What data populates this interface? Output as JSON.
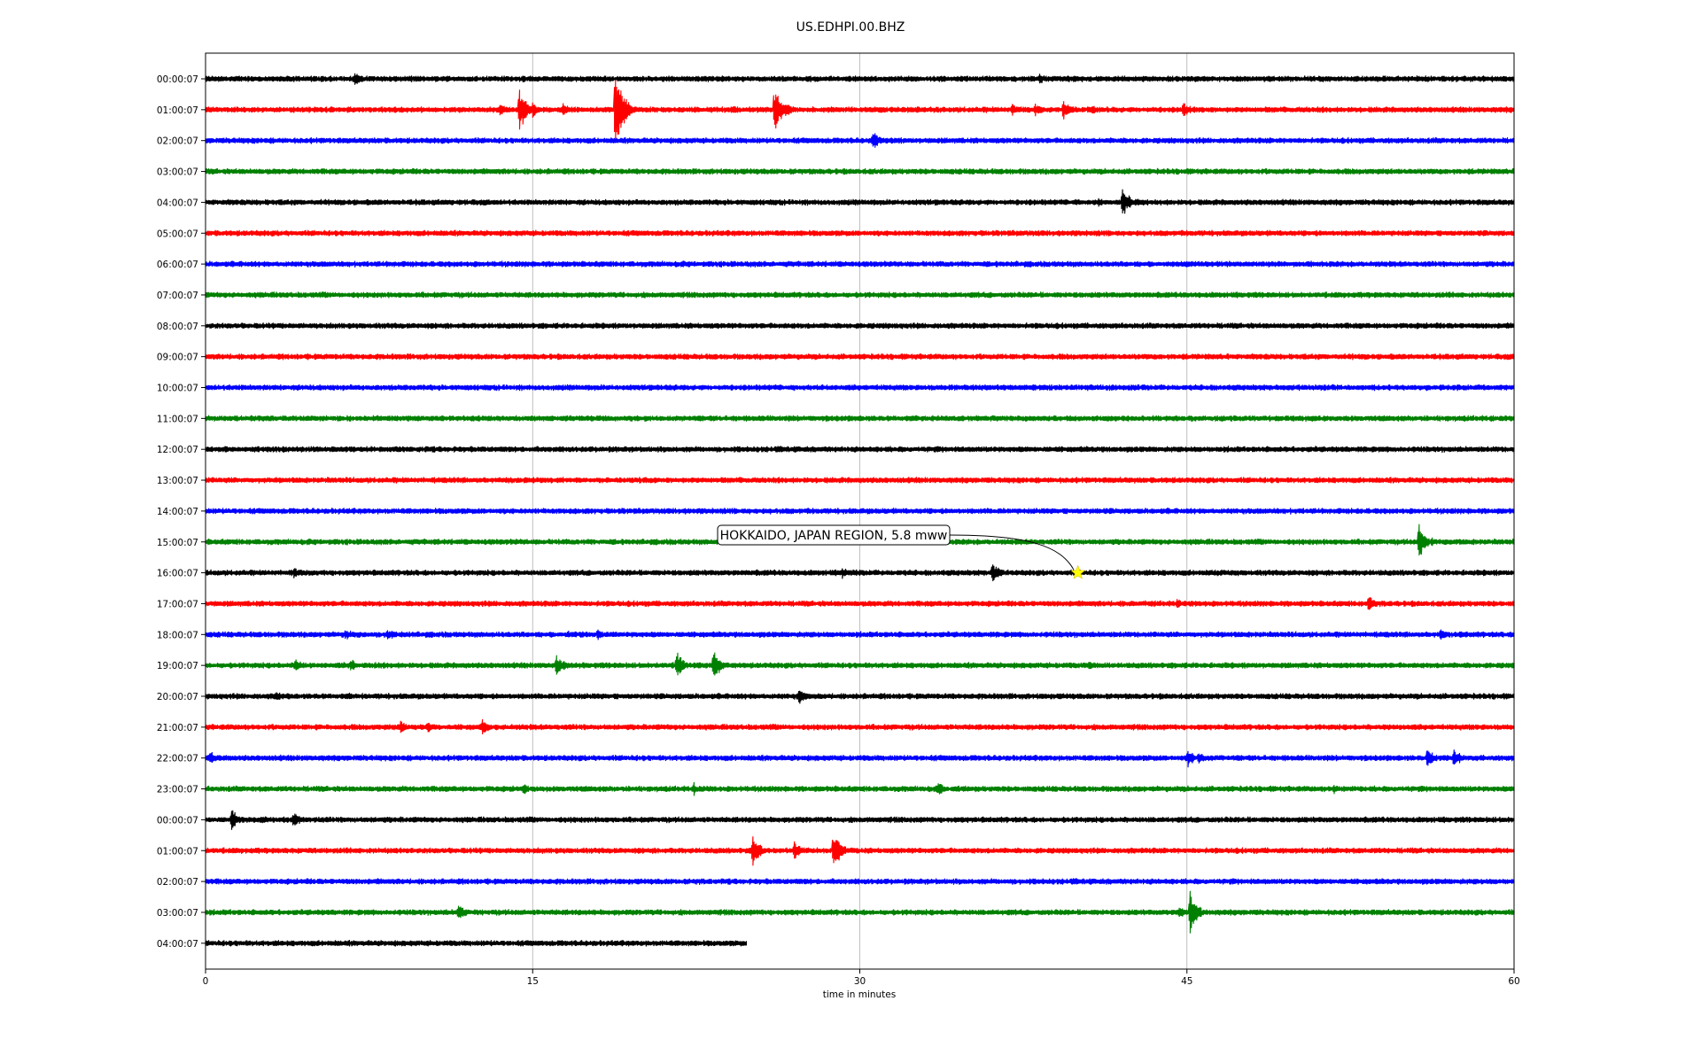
{
  "chart_data": {
    "type": "line",
    "title": "US.EDHPI.00.BHZ",
    "xlabel": "time in minutes",
    "ylabel": "",
    "xlim": [
      0,
      60
    ],
    "xticks": [
      "0",
      "15",
      "30",
      "45",
      "60"
    ],
    "xtick_values": [
      0,
      15,
      30,
      45,
      60
    ],
    "grid": "vertical",
    "colors": [
      "#000000",
      "#ff0000",
      "#0000ff",
      "#008000"
    ],
    "rows": [
      {
        "label": "00:00:07",
        "events": [
          {
            "t": 6.8,
            "a": 12
          },
          {
            "t": 38.2,
            "a": 8
          }
        ]
      },
      {
        "label": "01:00:07",
        "events": [
          {
            "t": 13.5,
            "a": 10
          },
          {
            "t": 14.4,
            "a": 28
          },
          {
            "t": 15.0,
            "a": 10
          },
          {
            "t": 16.4,
            "a": 10
          },
          {
            "t": 18.8,
            "a": 50
          },
          {
            "t": 19.2,
            "a": 20
          },
          {
            "t": 24.2,
            "a": 6
          },
          {
            "t": 26.1,
            "a": 30
          },
          {
            "t": 26.7,
            "a": 10
          },
          {
            "t": 37.0,
            "a": 10
          },
          {
            "t": 38.0,
            "a": 10
          },
          {
            "t": 39.3,
            "a": 16
          },
          {
            "t": 40.6,
            "a": 8
          },
          {
            "t": 44.8,
            "a": 12
          }
        ]
      },
      {
        "label": "02:00:07",
        "events": [
          {
            "t": 30.6,
            "a": 14
          }
        ]
      },
      {
        "label": "03:00:07",
        "events": []
      },
      {
        "label": "04:00:07",
        "events": [
          {
            "t": 39.8,
            "a": 6
          },
          {
            "t": 40.9,
            "a": 8
          },
          {
            "t": 42.0,
            "a": 22
          },
          {
            "t": 42.6,
            "a": 8
          }
        ]
      },
      {
        "label": "05:00:07",
        "events": []
      },
      {
        "label": "06:00:07",
        "events": []
      },
      {
        "label": "07:00:07",
        "events": []
      },
      {
        "label": "08:00:07",
        "events": []
      },
      {
        "label": "09:00:07",
        "events": []
      },
      {
        "label": "10:00:07",
        "events": []
      },
      {
        "label": "11:00:07",
        "events": []
      },
      {
        "label": "12:00:07",
        "events": []
      },
      {
        "label": "13:00:07",
        "events": []
      },
      {
        "label": "14:00:07",
        "events": []
      },
      {
        "label": "15:00:07",
        "events": [
          {
            "t": 55.6,
            "a": 26
          },
          {
            "t": 56.2,
            "a": 8
          }
        ]
      },
      {
        "label": "16:00:07",
        "events": [
          {
            "t": 4.0,
            "a": 8
          },
          {
            "t": 29.2,
            "a": 8
          },
          {
            "t": 36.1,
            "a": 14
          },
          {
            "t": 46.1,
            "a": 6
          }
        ]
      },
      {
        "label": "17:00:07",
        "events": [
          {
            "t": 42.3,
            "a": 6
          },
          {
            "t": 44.5,
            "a": 8
          },
          {
            "t": 53.3,
            "a": 12
          }
        ]
      },
      {
        "label": "18:00:07",
        "events": [
          {
            "t": 6.4,
            "a": 10
          },
          {
            "t": 8.3,
            "a": 10
          },
          {
            "t": 16.6,
            "a": 6
          },
          {
            "t": 18.0,
            "a": 8
          },
          {
            "t": 56.6,
            "a": 10
          }
        ]
      },
      {
        "label": "19:00:07",
        "events": [
          {
            "t": 4.1,
            "a": 12
          },
          {
            "t": 6.6,
            "a": 10
          },
          {
            "t": 16.1,
            "a": 14
          },
          {
            "t": 21.6,
            "a": 20
          },
          {
            "t": 23.3,
            "a": 18
          },
          {
            "t": 40.5,
            "a": 8
          }
        ]
      },
      {
        "label": "20:00:07",
        "events": [
          {
            "t": 3.2,
            "a": 8
          },
          {
            "t": 6.5,
            "a": 6
          },
          {
            "t": 27.2,
            "a": 12
          }
        ]
      },
      {
        "label": "21:00:07",
        "events": [
          {
            "t": 8.9,
            "a": 12
          },
          {
            "t": 10.2,
            "a": 8
          },
          {
            "t": 12.7,
            "a": 10
          },
          {
            "t": 54.0,
            "a": 6
          }
        ]
      },
      {
        "label": "22:00:07",
        "events": [
          {
            "t": 0.2,
            "a": 10
          },
          {
            "t": 45.0,
            "a": 14
          },
          {
            "t": 45.5,
            "a": 10
          },
          {
            "t": 56.0,
            "a": 16
          },
          {
            "t": 57.2,
            "a": 14
          }
        ]
      },
      {
        "label": "23:00:07",
        "events": [
          {
            "t": 14.6,
            "a": 8
          },
          {
            "t": 22.4,
            "a": 8
          },
          {
            "t": 33.6,
            "a": 10
          },
          {
            "t": 51.7,
            "a": 8
          }
        ]
      },
      {
        "label": "00:00:07",
        "events": [
          {
            "t": 1.2,
            "a": 14
          },
          {
            "t": 2.5,
            "a": 8
          },
          {
            "t": 4.0,
            "a": 12
          }
        ]
      },
      {
        "label": "01:00:07",
        "events": [
          {
            "t": 25.1,
            "a": 22
          },
          {
            "t": 27.0,
            "a": 12
          },
          {
            "t": 28.8,
            "a": 26
          }
        ]
      },
      {
        "label": "02:00:07",
        "events": [
          {
            "t": 22.5,
            "a": 4
          }
        ]
      },
      {
        "label": "03:00:07",
        "events": [
          {
            "t": 11.6,
            "a": 12
          },
          {
            "t": 44.6,
            "a": 10
          },
          {
            "t": 45.1,
            "a": 28
          }
        ]
      },
      {
        "label": "04:00:07",
        "events": [],
        "end_minute": 24.8
      }
    ],
    "annotations": [
      {
        "text": "HOKKAIDO, JAPAN REGION, 5.8 mww",
        "row": 16,
        "t": 40.0,
        "marker": "star",
        "marker_color": "#ffff00"
      }
    ]
  }
}
